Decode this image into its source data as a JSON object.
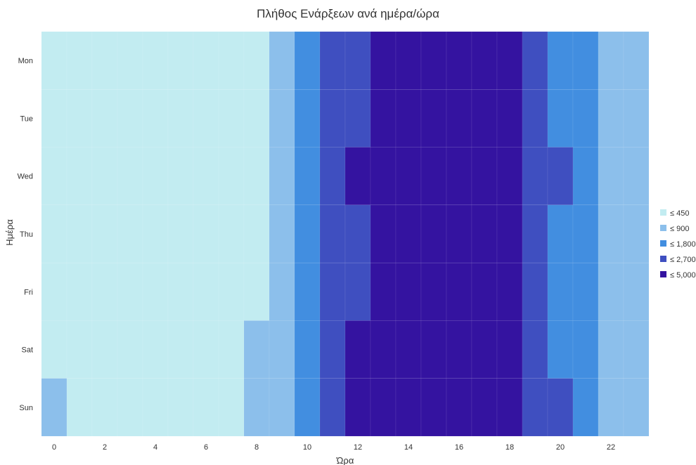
{
  "chart_data": {
    "type": "heatmap",
    "title": "Πλήθος Ενάρξεων ανά ημέρα/ώρα",
    "xlabel": "Ώρα",
    "ylabel": "Ημέρα",
    "x": [
      0,
      1,
      2,
      3,
      4,
      5,
      6,
      7,
      8,
      9,
      10,
      11,
      12,
      13,
      14,
      15,
      16,
      17,
      18,
      19,
      20,
      21,
      22,
      23
    ],
    "x_tick_labels": [
      "0",
      "2",
      "4",
      "6",
      "8",
      "10",
      "12",
      "14",
      "16",
      "18",
      "20",
      "22"
    ],
    "x_tick_values": [
      0,
      2,
      4,
      6,
      8,
      10,
      12,
      14,
      16,
      18,
      20,
      22
    ],
    "y": [
      "Mon",
      "Tue",
      "Wed",
      "Thu",
      "Fri",
      "Sat",
      "Sun"
    ],
    "values_note_bins": "cell values are color-bin indices: 0 = ≤ 450, 1 = ≤ 900, 2 = ≤ 1,800, 3 = ≤ 2,700, 4 = ≤ 5,000",
    "bins": [
      [
        0,
        0,
        0,
        0,
        0,
        0,
        0,
        0,
        0,
        1,
        2,
        3,
        3,
        4,
        4,
        4,
        4,
        4,
        4,
        3,
        2,
        2,
        1,
        1
      ],
      [
        0,
        0,
        0,
        0,
        0,
        0,
        0,
        0,
        0,
        1,
        2,
        3,
        3,
        4,
        4,
        4,
        4,
        4,
        4,
        3,
        2,
        2,
        1,
        1
      ],
      [
        0,
        0,
        0,
        0,
        0,
        0,
        0,
        0,
        0,
        1,
        2,
        3,
        4,
        4,
        4,
        4,
        4,
        4,
        4,
        3,
        3,
        2,
        1,
        1
      ],
      [
        0,
        0,
        0,
        0,
        0,
        0,
        0,
        0,
        0,
        1,
        2,
        3,
        3,
        4,
        4,
        4,
        4,
        4,
        4,
        3,
        2,
        2,
        1,
        1
      ],
      [
        0,
        0,
        0,
        0,
        0,
        0,
        0,
        0,
        0,
        1,
        2,
        3,
        3,
        4,
        4,
        4,
        4,
        4,
        4,
        3,
        2,
        2,
        1,
        1
      ],
      [
        0,
        0,
        0,
        0,
        0,
        0,
        0,
        0,
        1,
        1,
        2,
        3,
        4,
        4,
        4,
        4,
        4,
        4,
        4,
        3,
        2,
        2,
        1,
        1
      ],
      [
        1,
        0,
        0,
        0,
        0,
        0,
        0,
        0,
        1,
        1,
        2,
        3,
        4,
        4,
        4,
        4,
        4,
        4,
        4,
        3,
        3,
        2,
        1,
        1
      ]
    ],
    "legend": {
      "placement": "right",
      "items": [
        {
          "label": "≤ 450",
          "color": "#c2ecf1"
        },
        {
          "label": "≤ 900",
          "color": "#8cbfeb"
        },
        {
          "label": "≤ 1,800",
          "color": "#428ee0"
        },
        {
          "label": "≤ 2,700",
          "color": "#3f4fc0"
        },
        {
          "label": "≤ 5,000",
          "color": "#3413a0"
        }
      ]
    },
    "grid": false
  }
}
